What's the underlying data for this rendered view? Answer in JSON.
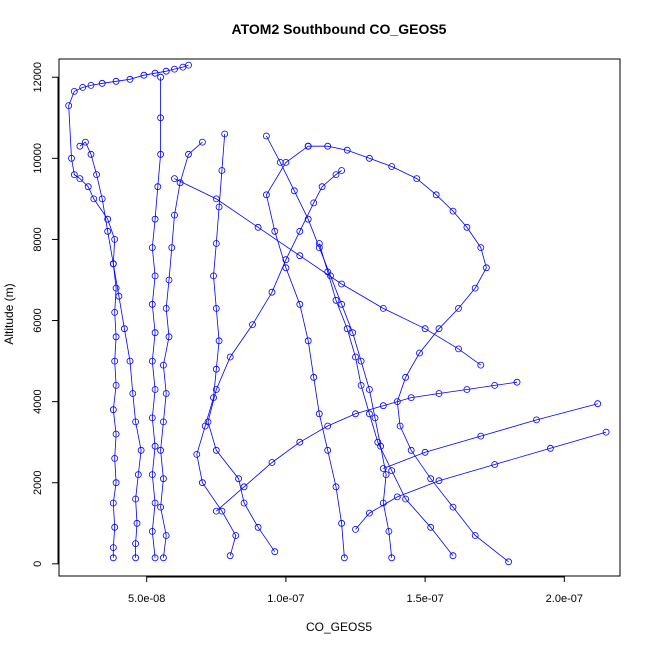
{
  "chart_data": {
    "type": "line",
    "title": "ATOM2 Southbound CO_GEOS5",
    "xlabel": "CO_GEOS5",
    "ylabel": "Altitude (m)",
    "xlim": [
      1.85e-08,
      2.2e-07
    ],
    "ylim": [
      -300,
      12450
    ],
    "x_ticks": [
      {
        "value": 5e-08,
        "label": "5.0e-08"
      },
      {
        "value": 1e-07,
        "label": "1.0e-07"
      },
      {
        "value": 1.5e-07,
        "label": "1.5e-07"
      },
      {
        "value": 2e-07,
        "label": "2.0e-07"
      }
    ],
    "y_ticks": [
      {
        "value": 0,
        "label": "0"
      },
      {
        "value": 2000,
        "label": "2000"
      },
      {
        "value": 4000,
        "label": "4000"
      },
      {
        "value": 6000,
        "label": "6000"
      },
      {
        "value": 8000,
        "label": "8000"
      },
      {
        "value": 10000,
        "label": "10000"
      },
      {
        "value": 12000,
        "label": "12000"
      }
    ],
    "grid": false,
    "marker": "open-circle",
    "color": "#0000ff",
    "series": [
      {
        "x": [
          3.8e-08,
          3.8e-08,
          3.85e-08,
          3.8e-08,
          3.9e-08,
          3.85e-08,
          3.9e-08,
          3.8e-08,
          3.9e-08,
          3.85e-08,
          3.9e-08,
          3.85e-08,
          3.9e-08,
          3.8e-08,
          3.85e-08,
          3.6e-08,
          3.1e-08,
          2.9e-08,
          2.6e-08,
          2.4e-08,
          2.3e-08,
          2.2e-08,
          2.4e-08,
          2.7e-08,
          3e-08,
          3.4e-08,
          3.9e-08,
          4.4e-08,
          4.9e-08,
          5.3e-08,
          5.7e-08,
          6e-08,
          6.3e-08,
          6.5e-08
        ],
        "y": [
          150,
          400,
          900,
          1500,
          2000,
          2600,
          3200,
          3800,
          4400,
          5000,
          5600,
          6200,
          6800,
          7400,
          8000,
          8500,
          9000,
          9300,
          9500,
          9600,
          10000,
          11300,
          11650,
          11750,
          11800,
          11850,
          11900,
          11950,
          12050,
          12100,
          12150,
          12200,
          12250,
          12300
        ]
      },
      {
        "x": [
          4.6e-08,
          4.6e-08,
          4.65e-08,
          4.6e-08,
          4.7e-08,
          4.8e-08,
          4.6e-08,
          4.5e-08,
          4.4e-08,
          4.2e-08,
          4e-08,
          3.8e-08,
          3.6e-08,
          3.4e-08,
          3.2e-08,
          3e-08,
          2.8e-08,
          2.6e-08
        ],
        "y": [
          150,
          500,
          1000,
          1600,
          2200,
          2800,
          3500,
          4200,
          5000,
          5800,
          6600,
          7400,
          8200,
          9000,
          9600,
          10100,
          10400,
          10300
        ]
      },
      {
        "x": [
          5.3e-08,
          5.2e-08,
          5.3e-08,
          5.2e-08,
          5.3e-08,
          5.2e-08,
          5.3e-08,
          5.2e-08,
          5.3e-08,
          5.2e-08,
          5.3e-08,
          5.2e-08,
          5.3e-08,
          5.4e-08,
          5.5e-08,
          5.5e-08,
          5.5e-08
        ],
        "y": [
          150,
          800,
          1500,
          2200,
          2900,
          3600,
          4300,
          5000,
          5700,
          6400,
          7100,
          7800,
          8500,
          9300,
          10100,
          11000,
          12000
        ]
      },
      {
        "x": [
          5.6e-08,
          5.7e-08,
          5.5e-08,
          5.6e-08,
          5.5e-08,
          5.6e-08,
          5.7e-08,
          5.6e-08,
          5.8e-08,
          5.7e-08,
          5.8e-08,
          5.9e-08,
          6e-08,
          6.2e-08,
          6.5e-08,
          7e-08
        ],
        "y": [
          150,
          700,
          1400,
          2100,
          2800,
          3500,
          4200,
          4900,
          5600,
          6300,
          7000,
          7800,
          8600,
          9400,
          10100,
          10400
        ]
      },
      {
        "x": [
          8e-08,
          8.2e-08,
          7.7e-08,
          7e-08,
          6.8e-08,
          7.1e-08,
          7.4e-08,
          7.5e-08,
          7.6e-08,
          7.5e-08,
          7.4e-08,
          7.5e-08,
          7.6e-08,
          7.7e-08,
          7.8e-08
        ],
        "y": [
          200,
          700,
          1300,
          2000,
          2700,
          3400,
          4100,
          4800,
          5500,
          6300,
          7100,
          7900,
          8800,
          9700,
          10600
        ]
      },
      {
        "x": [
          9.6e-08,
          9e-08,
          8.5e-08,
          8.3e-08,
          7.5e-08,
          7.2e-08,
          7.5e-08,
          8e-08,
          8.8e-08,
          9.5e-08,
          1e-07,
          1.05e-07,
          1.1e-07,
          1.13e-07,
          1.18e-07,
          1.2e-07
        ],
        "y": [
          300,
          900,
          1500,
          2100,
          2800,
          3500,
          4300,
          5100,
          5900,
          6700,
          7500,
          8200,
          8900,
          9300,
          9600,
          9700
        ]
      },
      {
        "x": [
          1.21e-07,
          1.2e-07,
          1.18e-07,
          1.15e-07,
          1.12e-07,
          1.1e-07,
          1.08e-07,
          1.05e-07,
          1e-07,
          9.6e-08,
          9.3e-08,
          1e-07,
          1.08e-07
        ],
        "y": [
          150,
          1000,
          1900,
          2800,
          3700,
          4600,
          5500,
          6400,
          7300,
          8200,
          9100,
          9900,
          10300
        ]
      },
      {
        "x": [
          1.38e-07,
          1.37e-07,
          1.35e-07,
          1.36e-07,
          1.34e-07,
          1.32e-07,
          1.3e-07,
          1.27e-07,
          1.24e-07,
          1.2e-07,
          1.16e-07,
          1.12e-07,
          1.08e-07,
          1.03e-07,
          9.8e-08,
          9.3e-08
        ],
        "y": [
          150,
          800,
          1500,
          2200,
          2900,
          3600,
          4300,
          5000,
          5700,
          6400,
          7100,
          7800,
          8500,
          9200,
          9900,
          10550
        ]
      },
      {
        "x": [
          1.8e-07,
          1.68e-07,
          1.6e-07,
          1.52e-07,
          1.45e-07,
          1.41e-07,
          1.4e-07,
          1.43e-07,
          1.48e-07,
          1.55e-07,
          1.62e-07,
          1.68e-07,
          1.72e-07,
          1.7e-07,
          1.65e-07,
          1.6e-07,
          1.54e-07,
          1.47e-07,
          1.38e-07,
          1.3e-07,
          1.22e-07,
          1.15e-07,
          1.08e-07
        ],
        "y": [
          50,
          700,
          1400,
          2100,
          2800,
          3400,
          4000,
          4600,
          5200,
          5800,
          6300,
          6800,
          7300,
          7800,
          8300,
          8700,
          9100,
          9500,
          9800,
          10000,
          10200,
          10300,
          10300
        ]
      },
      {
        "x": [
          1.6e-07,
          1.52e-07,
          1.43e-07,
          1.38e-07,
          1.33e-07,
          1.3e-07,
          1.27e-07,
          1.25e-07,
          1.22e-07,
          1.18e-07,
          1.15e-07,
          1.12e-07
        ],
        "y": [
          200,
          900,
          1600,
          2300,
          3000,
          3700,
          4400,
          5100,
          5800,
          6500,
          7200,
          7900
        ]
      },
      {
        "x": [
          2.15e-07,
          1.95e-07,
          1.75e-07,
          1.55e-07,
          1.4e-07,
          1.3e-07,
          1.25e-07
        ],
        "y": [
          3250,
          2850,
          2450,
          2050,
          1650,
          1250,
          850
        ]
      },
      {
        "x": [
          2.12e-07,
          1.9e-07,
          1.7e-07,
          1.5e-07,
          1.35e-07
        ],
        "y": [
          3950,
          3550,
          3150,
          2750,
          2350
        ]
      },
      {
        "x": [
          7.5e-08,
          8.5e-08,
          9.5e-08,
          1.05e-07,
          1.15e-07,
          1.25e-07,
          1.35e-07,
          1.45e-07,
          1.55e-07,
          1.65e-07,
          1.75e-07,
          1.83e-07
        ],
        "y": [
          1300,
          1900,
          2500,
          3000,
          3400,
          3700,
          3900,
          4100,
          4200,
          4300,
          4400,
          4480
        ]
      },
      {
        "x": [
          6e-08,
          7.5e-08,
          9e-08,
          1.05e-07,
          1.2e-07,
          1.35e-07,
          1.5e-07,
          1.62e-07,
          1.7e-07
        ],
        "y": [
          9500,
          9000,
          8300,
          7600,
          6900,
          6300,
          5800,
          5300,
          4900
        ]
      }
    ]
  }
}
